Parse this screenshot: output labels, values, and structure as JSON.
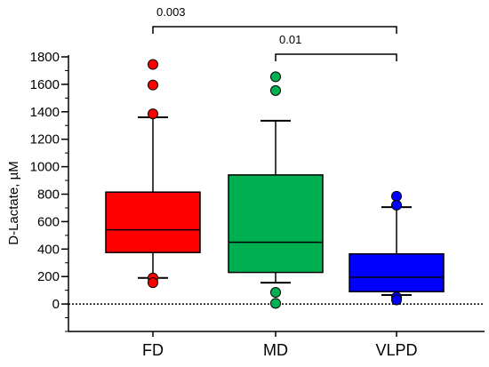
{
  "chart_data": {
    "type": "box",
    "ylabel": "D-Lactate, µM",
    "ylim": [
      -200,
      1800
    ],
    "yticks": [
      0,
      200,
      400,
      600,
      800,
      1000,
      1200,
      1400,
      1600,
      1800
    ],
    "yticks_minor_step": 100,
    "grid": false,
    "reference_line": {
      "y": 0,
      "style": "dotted"
    },
    "categories": [
      "FD",
      "MD",
      "VLPD"
    ],
    "boxes": [
      {
        "category": "FD",
        "color": "#ff0000",
        "whisker_low": 190,
        "q1": 375,
        "median": 540,
        "q3": 815,
        "whisker_high": 1360,
        "outliers": [
          1745,
          1595,
          1385,
          190,
          155
        ]
      },
      {
        "category": "MD",
        "color": "#00b050",
        "whisker_low": 155,
        "q1": 230,
        "median": 450,
        "q3": 940,
        "whisker_high": 1335,
        "outliers": [
          1655,
          1555,
          85,
          5
        ]
      },
      {
        "category": "VLPD",
        "color": "#0000ff",
        "whisker_low": 65,
        "q1": 90,
        "median": 195,
        "q3": 365,
        "whisker_high": 705,
        "outliers": [
          785,
          720,
          50,
          30
        ]
      }
    ],
    "comparisons": [
      {
        "from": "FD",
        "to": "VLPD",
        "label": "0.003"
      },
      {
        "from": "MD",
        "to": "VLPD",
        "label": "0.01"
      }
    ]
  }
}
